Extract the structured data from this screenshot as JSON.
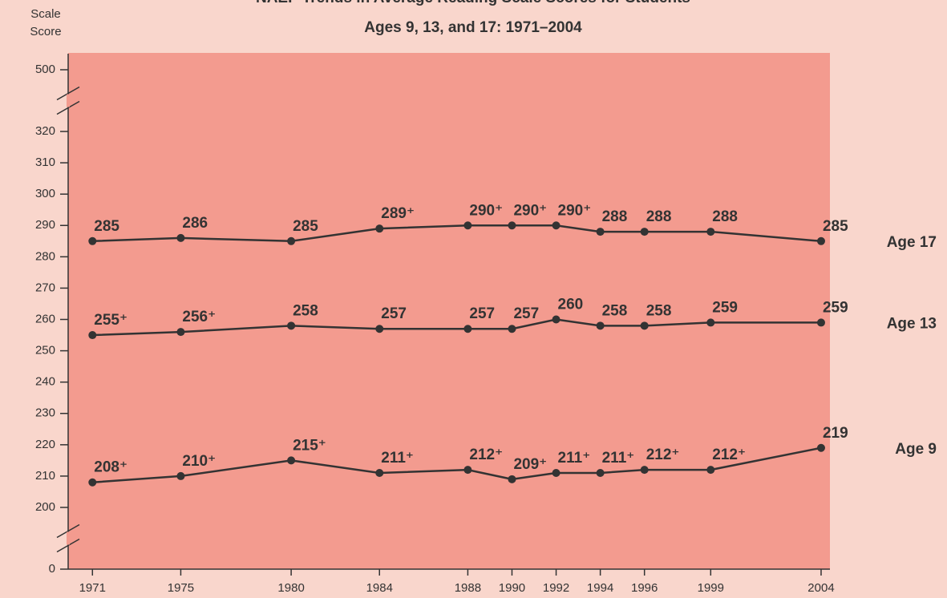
{
  "chart_data": {
    "type": "line",
    "title": "NAEP Trends in Average Reading Scale Scores for Students",
    "subtitle": "Ages 9, 13, and 17: 1971–2004",
    "y_label": [
      "Scale",
      "Score"
    ],
    "x": [
      1971,
      1975,
      1980,
      1984,
      1988,
      1990,
      1992,
      1994,
      1996,
      1999,
      2004
    ],
    "xlim": [
      1969.9,
      2004.4
    ],
    "xticks": [
      1971,
      1975,
      1980,
      1984,
      1988,
      1990,
      1992,
      1994,
      1996,
      1999,
      2004
    ],
    "ylim": [
      0,
      500
    ],
    "yticks": [
      0,
      200,
      210,
      220,
      230,
      240,
      250,
      260,
      270,
      280,
      290,
      300,
      310,
      320,
      500
    ],
    "y_breaks": [
      [
        0,
        200
      ],
      [
        320,
        500
      ]
    ],
    "series": [
      {
        "name": "Age 17",
        "color": "#333333",
        "values": [
          285,
          286,
          285,
          289,
          290,
          290,
          290,
          288,
          288,
          288,
          285
        ],
        "value_labels": [
          "285",
          "286",
          "285",
          "289⁺",
          "290⁺",
          "290⁺",
          "290⁺",
          "288",
          "288",
          "288",
          "285"
        ]
      },
      {
        "name": "Age 13",
        "color": "#333333",
        "values": [
          255,
          256,
          258,
          257,
          257,
          257,
          260,
          258,
          258,
          259,
          259
        ],
        "value_labels": [
          "255⁺",
          "256⁺",
          "258",
          "257",
          "257",
          "257",
          "260",
          "258",
          "258",
          "259",
          "259"
        ]
      },
      {
        "name": "Age 9",
        "color": "#333333",
        "values": [
          208,
          210,
          215,
          211,
          212,
          209,
          211,
          211,
          212,
          212,
          219
        ],
        "value_labels": [
          "208⁺",
          "210⁺",
          "215⁺",
          "211⁺",
          "212⁺",
          "209⁺",
          "211⁺",
          "211⁺",
          "212⁺",
          "212⁺",
          "219"
        ]
      }
    ]
  }
}
